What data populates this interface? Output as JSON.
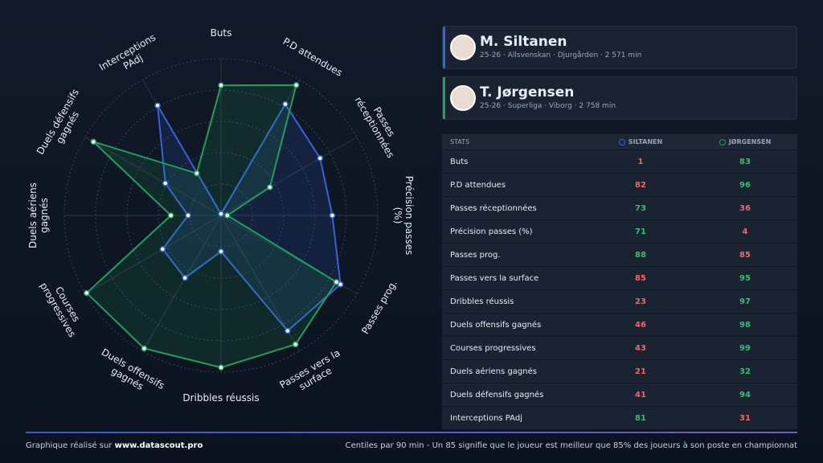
{
  "chart_data": {
    "type": "radar",
    "rlim": [
      0,
      100
    ],
    "categories": [
      "Buts",
      "P.D attendues",
      "Passes réceptionnées",
      "Précision passes (%)",
      "Passes prog.",
      "Passes vers la surface",
      "Dribbles réussis",
      "Duels offensifs gagnés",
      "Courses progressives",
      "Duels aériens gagnés",
      "Duels défensifs gagnés",
      "Interceptions PAdj"
    ],
    "series": [
      {
        "name": "SILTANEN",
        "color": "#3563d8",
        "values": [
          1,
          82,
          73,
          71,
          88,
          85,
          23,
          46,
          43,
          21,
          41,
          81
        ]
      },
      {
        "name": "JØRGENSEN",
        "color": "#1fa05a",
        "values": [
          83,
          96,
          36,
          4,
          85,
          95,
          97,
          98,
          99,
          32,
          94,
          31
        ]
      }
    ]
  },
  "players": [
    {
      "name": "M. Siltanen",
      "info": "25-26 · Allsvenskan · Djurgården · 2 571 min"
    },
    {
      "name": "T. Jørgensen",
      "info": "25-26 · Superliga · Viborg · 2 758 min"
    }
  ],
  "table_header": "STATS",
  "footer": {
    "left": "Graphique réalisé sur",
    "link": "www.datascout.pro",
    "right": "Centiles par 90 min - Un 85 signifie que le joueur est meilleur que 85% des joueurs à son poste en championnat"
  }
}
